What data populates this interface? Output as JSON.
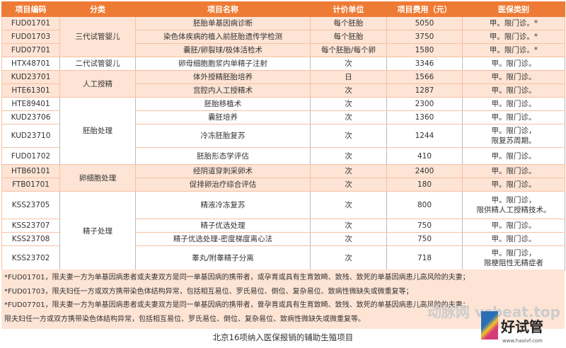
{
  "headers": [
    "项目编码",
    "分类",
    "项目名称",
    "计价单位",
    "项目费用（元）",
    "医保类别"
  ],
  "rows": [
    {
      "code": "FUD01701",
      "category": "三代试管婴儿",
      "name": "胚胎单基因病诊断",
      "unit": "每个胚胎",
      "cost": "5050",
      "insurance": "甲。限门诊。*"
    },
    {
      "code": "FUD01703",
      "name": "染色体疾病的植入前胚胎遗传学检测",
      "unit": "每个胚胎",
      "cost": "3750",
      "insurance": "甲。限门诊。*"
    },
    {
      "code": "FUD07701",
      "name": "囊胚/卵裂球/极体活检术",
      "unit": "每个胚胎/每个卵",
      "cost": "1580",
      "insurance": "甲。限门诊。*"
    },
    {
      "code": "HTX48701",
      "category": "二代试管婴儿",
      "name": "卵母细胞胞浆内单精子注射",
      "unit": "次",
      "cost": "3346",
      "insurance": "甲。限门诊。"
    },
    {
      "code": "KUD23701",
      "category": "人工授精",
      "name": "体外授精胚胎培养",
      "unit": "日",
      "cost": "1566",
      "insurance": "甲。限门诊。"
    },
    {
      "code": "HTE61301",
      "name": "宫腔内人工授精术",
      "unit": "次",
      "cost": "1287",
      "insurance": "甲。限门诊。"
    },
    {
      "code": "HTE89401",
      "category": "胚胎处理",
      "name": "胚胎移植术",
      "unit": "次",
      "cost": "2300",
      "insurance": "甲。限门诊。"
    },
    {
      "code": "KUD23706",
      "name": "囊胚培养",
      "unit": "次",
      "cost": "1360",
      "insurance": "甲。限门诊。"
    },
    {
      "code": "KUD23710",
      "name": "冷冻胚胎复苏",
      "unit": "次",
      "cost": "1244",
      "insurance": "甲。限门诊，",
      "insurance2": "限复苏周期。"
    },
    {
      "code": "FUD01702",
      "name": "胚胎形态学评估",
      "unit": "次",
      "cost": "410",
      "insurance": "甲。限门诊。"
    },
    {
      "code": "HTB60101",
      "category": "卵细胞处理",
      "name": "经阴道穿刺采卵术",
      "unit": "次",
      "cost": "2400",
      "insurance": "甲。限门诊。"
    },
    {
      "code": "FTB01701",
      "name": "促排卵治疗综合评估",
      "unit": "次",
      "cost": "180",
      "insurance": "甲。限门诊。"
    },
    {
      "code": "KSS23705",
      "category": "精子处理",
      "name": "精液冷冻复苏",
      "unit": "次",
      "cost": "800",
      "insurance": "甲。限门诊，",
      "insurance2": "限供精人工授精技术。"
    },
    {
      "code": "KSS23707",
      "name": "精子优选处理",
      "unit": "次",
      "cost": "750",
      "insurance": "甲。限门诊。"
    },
    {
      "code": "KSS23708",
      "name": "精子优选处理-密度梯度离心法",
      "unit": "次",
      "cost": "750",
      "insurance": "甲。限门诊。"
    },
    {
      "code": "KSS23702",
      "name": "睾丸/附睾精子分离",
      "unit": "次",
      "cost": "718",
      "insurance": "甲。限门诊，",
      "insurance2": "限梗阻性无精症者"
    }
  ],
  "notes": [
    "*FUD01701，限夫妻一方为单基因病患者或夫妻双方是同一单基因病的携带者，或孕育或具有生育致畸、致残、致死的单基因病患儿高风险的夫妻；",
    "*FUD01703，限夫妇任一方或双方携带染色体结构异常，包括相互易位、罗氏易位、倒位、复杂易位、致病性微缺失或微重复等；",
    "*FUD07701，限夫妻一方为单基因病患者或夫妻双方是同一单基因病的携带者，曾孕育或具有生育致畸、致残、致死的单基因病患儿高风险的夫妻；",
    "限夫妇任一方或双方携带染色体结构异常，包括相互易位、罗氏易位、倒位、复杂易位、致病性微缺失或微重复等。"
  ],
  "caption": "北京16项纳入医保报销的辅助生殖项目",
  "watermark": "动脉网 vcbeat.top",
  "logo": {
    "text": "好试管",
    "url": "www.haoivf.com"
  },
  "colors": {
    "header": "#ee7b35",
    "highlight": "#fde4d5"
  }
}
